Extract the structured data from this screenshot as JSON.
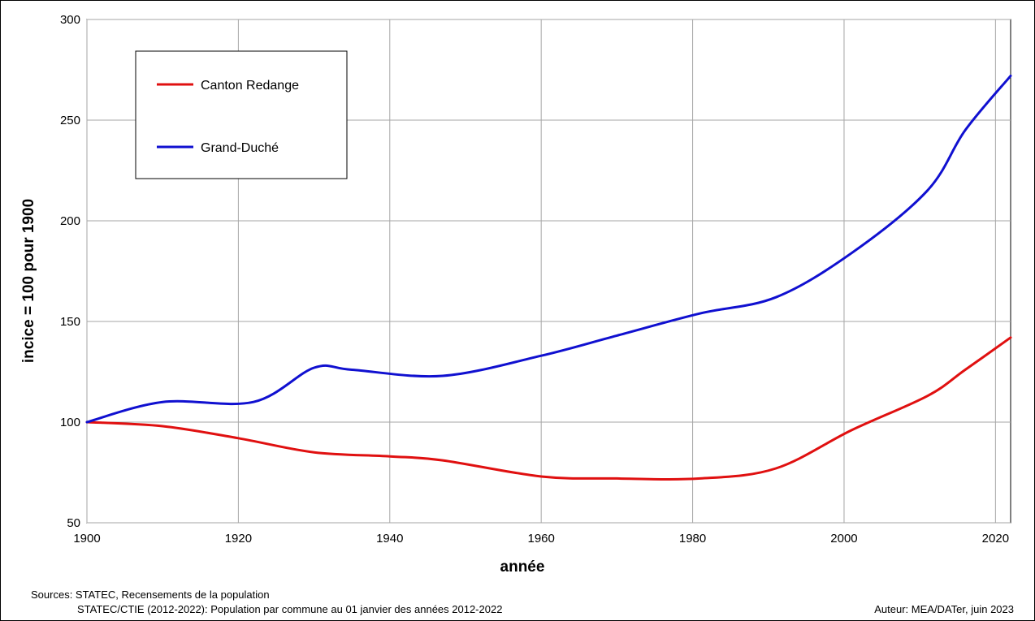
{
  "chart_data": {
    "type": "line",
    "title": "",
    "xlabel": "année",
    "ylabel": "incice = 100 pour 1900",
    "xlim": [
      1900,
      2022
    ],
    "ylim": [
      50,
      300
    ],
    "xticks": [
      1900,
      1920,
      1940,
      1960,
      1980,
      2000,
      2020
    ],
    "yticks": [
      50,
      100,
      150,
      200,
      250,
      300
    ],
    "grid": true,
    "legend_position": "top-left",
    "series": [
      {
        "name": "Canton Redange",
        "color": "#e01010",
        "points": [
          [
            1900,
            100
          ],
          [
            1910,
            98
          ],
          [
            1920,
            92
          ],
          [
            1930,
            85
          ],
          [
            1940,
            83
          ],
          [
            1947,
            81
          ],
          [
            1960,
            73
          ],
          [
            1970,
            72
          ],
          [
            1981,
            72
          ],
          [
            1991,
            77
          ],
          [
            2001,
            96
          ],
          [
            2011,
            113
          ],
          [
            2016,
            126
          ],
          [
            2022,
            142
          ]
        ]
      },
      {
        "name": "Grand-Duché",
        "color": "#1010d0",
        "points": [
          [
            1900,
            100
          ],
          [
            1910,
            110
          ],
          [
            1922,
            110
          ],
          [
            1930,
            127
          ],
          [
            1935,
            126
          ],
          [
            1947,
            123
          ],
          [
            1960,
            133
          ],
          [
            1970,
            143
          ],
          [
            1981,
            154
          ],
          [
            1991,
            162
          ],
          [
            2001,
            184
          ],
          [
            2011,
            215
          ],
          [
            2016,
            245
          ],
          [
            2022,
            272
          ]
        ]
      }
    ]
  },
  "footer": {
    "source_line1": "Sources: STATEC, Recensements de la population",
    "source_line2": "STATEC/CTIE (2012-2022): Population par commune au 01 janvier des années 2012-2022",
    "author": "Auteur: MEA/DATer, juin 2023"
  }
}
